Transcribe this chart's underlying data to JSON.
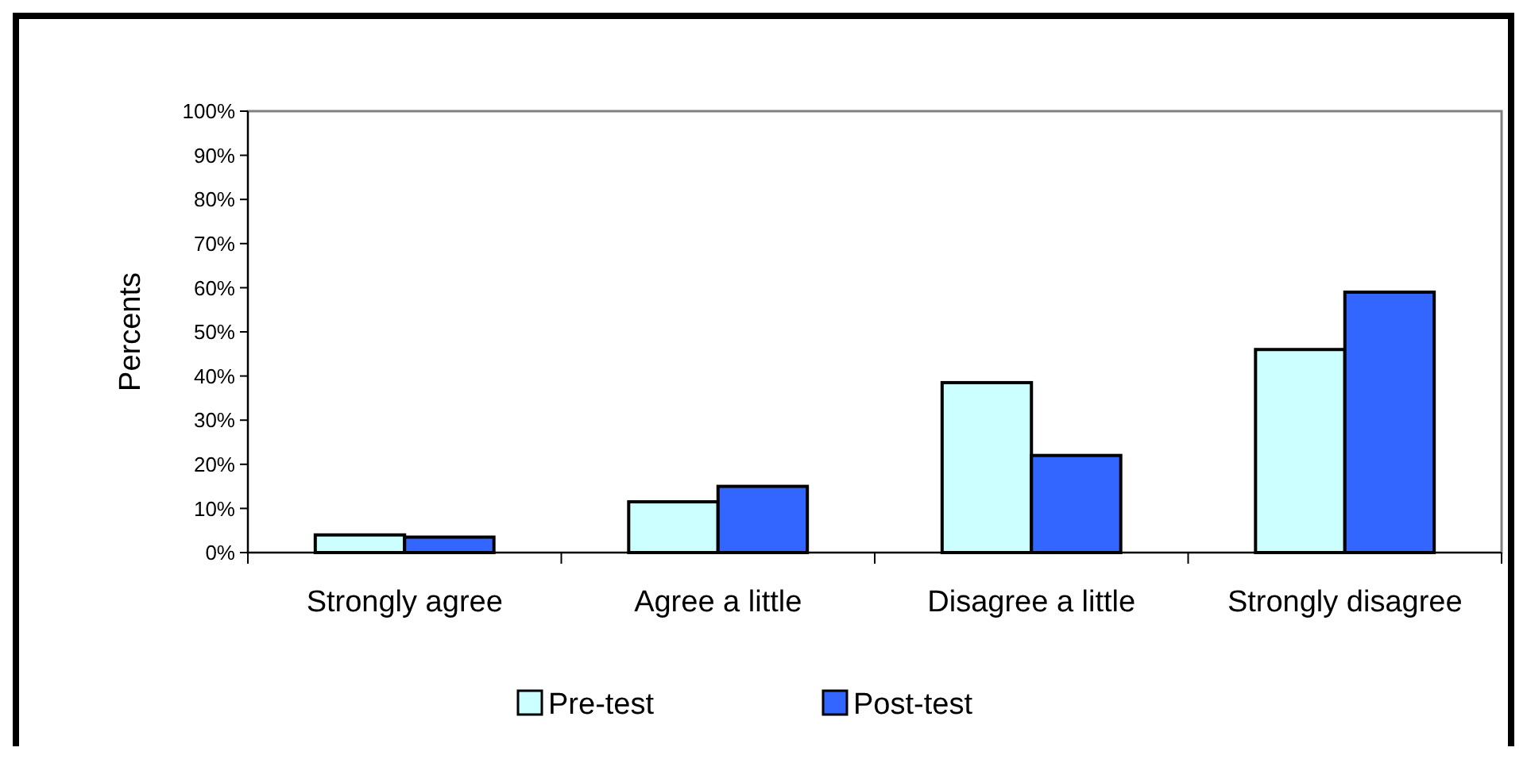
{
  "chart_data": {
    "type": "bar",
    "ylabel": "Percents",
    "categories": [
      "Strongly agree",
      "Agree a little",
      "Disagree a little",
      "Strongly disagree"
    ],
    "series": [
      {
        "name": "Pre-test",
        "color": "#ccffff",
        "values": [
          4,
          11.5,
          38.5,
          46
        ]
      },
      {
        "name": "Post-test",
        "color": "#3366ff",
        "values": [
          3.5,
          15,
          22,
          59
        ]
      }
    ],
    "ylim": [
      0,
      100
    ],
    "yticks": [
      {
        "value": 0,
        "label": "0%"
      },
      {
        "value": 10,
        "label": "10%"
      },
      {
        "value": 20,
        "label": "20%"
      },
      {
        "value": 30,
        "label": "30%"
      },
      {
        "value": 40,
        "label": "40%"
      },
      {
        "value": 50,
        "label": "50%"
      },
      {
        "value": 60,
        "label": "60%"
      },
      {
        "value": 70,
        "label": "70%"
      },
      {
        "value": 80,
        "label": "80%"
      },
      {
        "value": 90,
        "label": "90%"
      },
      {
        "value": 100,
        "label": "100%"
      }
    ],
    "grid": false,
    "legend": "bottom"
  }
}
